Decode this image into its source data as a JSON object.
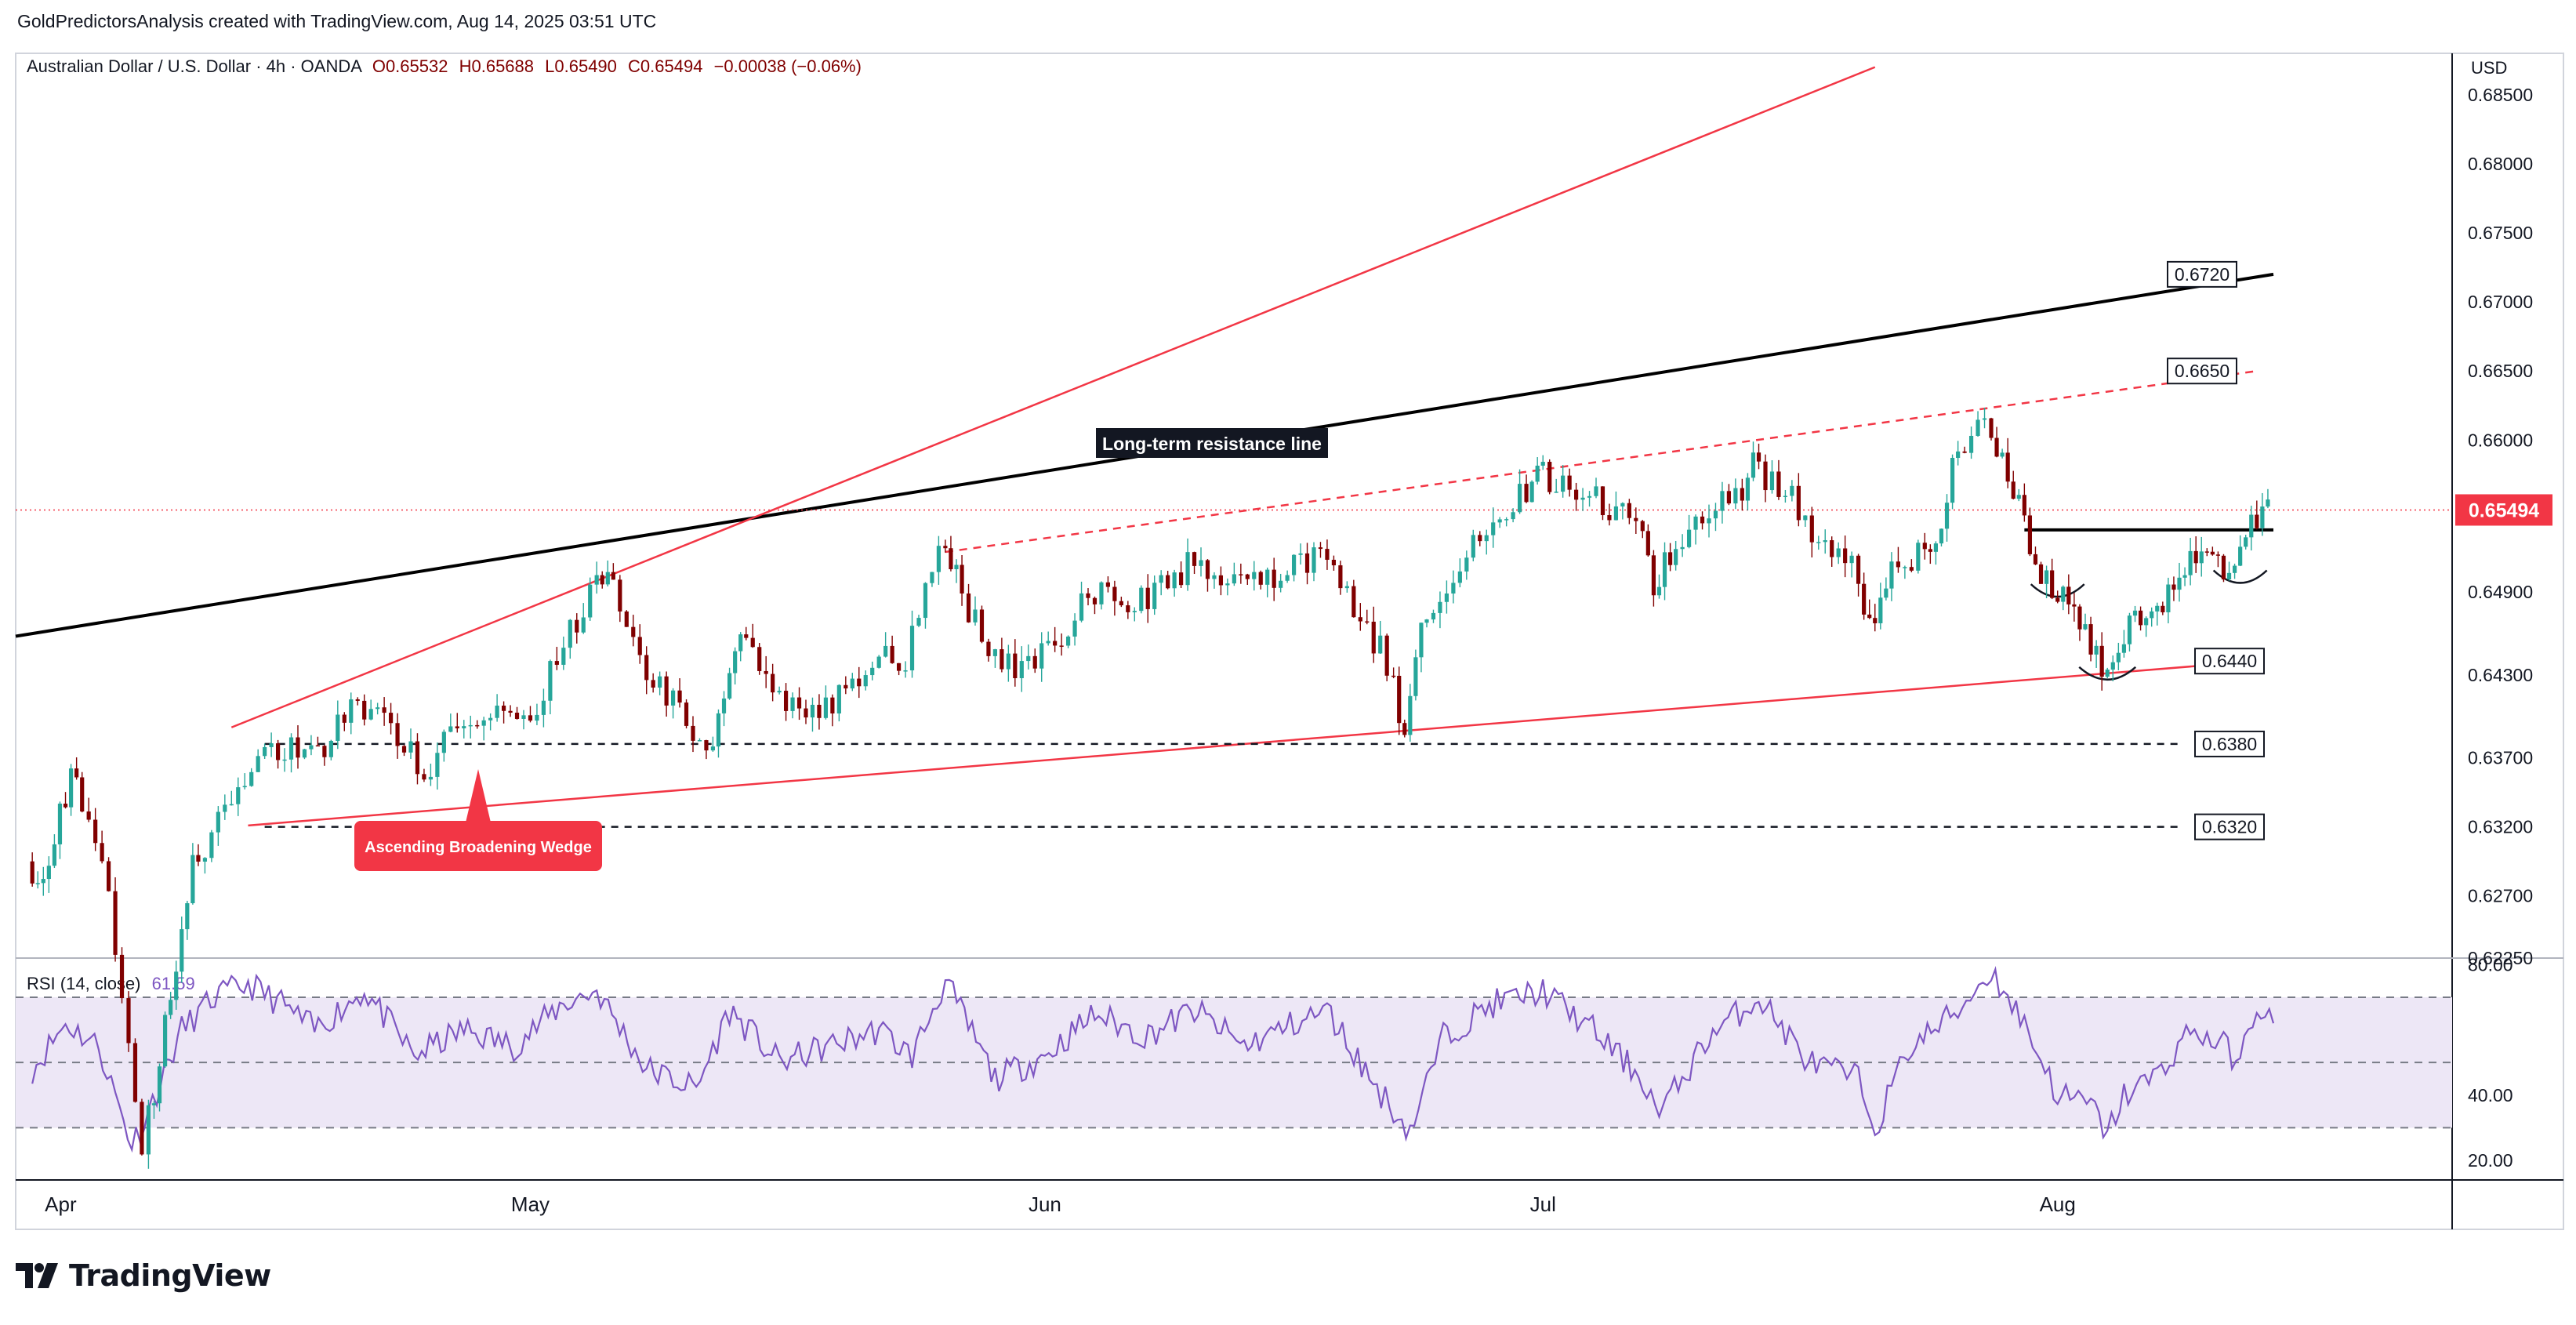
{
  "header": {
    "credit": "GoldPredictorsAnalysis created with TradingView.com, Aug 14, 2025 03:51 UTC"
  },
  "legend": {
    "symbol": "Australian Dollar / U.S. Dollar · 4h · OANDA",
    "open": "O0.65532",
    "high": "H0.65688",
    "low": "L0.65490",
    "close": "C0.65494",
    "change": "−0.00038 (−0.06%)"
  },
  "rsi_legend": {
    "label": "RSI (14, close)",
    "value": "61.59"
  },
  "price_axis": {
    "currency": "USD",
    "current_price": "0.65494"
  },
  "brand": {
    "name": "TradingView"
  },
  "colors": {
    "up": "#26a69a",
    "down": "#800000",
    "trend_red": "#f23645",
    "trend_black": "#000000",
    "rsi_line": "#7e57c2",
    "rsi_band": "#ede7f6",
    "price_tag": "#f23645"
  },
  "chart_data": [
    {
      "type": "candlestick",
      "title": "Australian Dollar / U.S. Dollar · 4h · OANDA",
      "ylabel": "USD",
      "ylim": [
        0.6225,
        0.688
      ],
      "y_ticks": [
        "0.68500",
        "0.68000",
        "0.67500",
        "0.67000",
        "0.66500",
        "0.66000",
        "0.65494",
        "0.64900",
        "0.64300",
        "0.63700",
        "0.63200",
        "0.62700",
        "0.62250"
      ],
      "x_ticks": [
        "Apr",
        "May",
        "Jun",
        "Jul",
        "Aug"
      ],
      "close_path": [
        {
          "date": "2025-04-01",
          "close": 0.6295
        },
        {
          "date": "2025-04-02",
          "close": 0.628
        },
        {
          "date": "2025-04-03",
          "close": 0.6335
        },
        {
          "date": "2025-04-04",
          "close": 0.636
        },
        {
          "date": "2025-04-06",
          "close": 0.627
        },
        {
          "date": "2025-04-08",
          "close": 0.609
        },
        {
          "date": "2025-04-09",
          "close": 0.615
        },
        {
          "date": "2025-04-10",
          "close": 0.6225
        },
        {
          "date": "2025-04-11",
          "close": 0.629
        },
        {
          "date": "2025-04-13",
          "close": 0.633
        },
        {
          "date": "2025-04-15",
          "close": 0.637
        },
        {
          "date": "2025-04-17",
          "close": 0.6375
        },
        {
          "date": "2025-04-19",
          "close": 0.638
        },
        {
          "date": "2025-04-21",
          "close": 0.641
        },
        {
          "date": "2025-04-23",
          "close": 0.639
        },
        {
          "date": "2025-04-25",
          "close": 0.636
        },
        {
          "date": "2025-04-27",
          "close": 0.6395
        },
        {
          "date": "2025-04-29",
          "close": 0.6405
        },
        {
          "date": "2025-05-01",
          "close": 0.639
        },
        {
          "date": "2025-05-03",
          "close": 0.644
        },
        {
          "date": "2025-05-05",
          "close": 0.649
        },
        {
          "date": "2025-05-06",
          "close": 0.65
        },
        {
          "date": "2025-05-08",
          "close": 0.644
        },
        {
          "date": "2025-05-10",
          "close": 0.641
        },
        {
          "date": "2025-05-12",
          "close": 0.637
        },
        {
          "date": "2025-05-13",
          "close": 0.642
        },
        {
          "date": "2025-05-14",
          "close": 0.647
        },
        {
          "date": "2025-05-16",
          "close": 0.642
        },
        {
          "date": "2025-05-18",
          "close": 0.64
        },
        {
          "date": "2025-05-20",
          "close": 0.6415
        },
        {
          "date": "2025-05-22",
          "close": 0.644
        },
        {
          "date": "2025-05-24",
          "close": 0.644
        },
        {
          "date": "2025-05-26",
          "close": 0.652
        },
        {
          "date": "2025-05-27",
          "close": 0.65
        },
        {
          "date": "2025-05-29",
          "close": 0.6445
        },
        {
          "date": "2025-05-31",
          "close": 0.643
        },
        {
          "date": "2025-06-02",
          "close": 0.645
        },
        {
          "date": "2025-06-04",
          "close": 0.649
        },
        {
          "date": "2025-06-06",
          "close": 0.648
        },
        {
          "date": "2025-06-08",
          "close": 0.649
        },
        {
          "date": "2025-06-10",
          "close": 0.651
        },
        {
          "date": "2025-06-12",
          "close": 0.6505
        },
        {
          "date": "2025-06-14",
          "close": 0.65
        },
        {
          "date": "2025-06-16",
          "close": 0.6505
        },
        {
          "date": "2025-06-18",
          "close": 0.652
        },
        {
          "date": "2025-06-20",
          "close": 0.648
        },
        {
          "date": "2025-06-22",
          "close": 0.644
        },
        {
          "date": "2025-06-23",
          "close": 0.6385
        },
        {
          "date": "2025-06-24",
          "close": 0.647
        },
        {
          "date": "2025-06-26",
          "close": 0.65
        },
        {
          "date": "2025-06-28",
          "close": 0.654
        },
        {
          "date": "2025-06-30",
          "close": 0.656
        },
        {
          "date": "2025-07-01",
          "close": 0.6575
        },
        {
          "date": "2025-07-03",
          "close": 0.657
        },
        {
          "date": "2025-07-05",
          "close": 0.6555
        },
        {
          "date": "2025-07-07",
          "close": 0.654
        },
        {
          "date": "2025-07-08",
          "close": 0.6495
        },
        {
          "date": "2025-07-09",
          "close": 0.652
        },
        {
          "date": "2025-07-11",
          "close": 0.6545
        },
        {
          "date": "2025-07-13",
          "close": 0.656
        },
        {
          "date": "2025-07-14",
          "close": 0.658
        },
        {
          "date": "2025-07-16",
          "close": 0.6565
        },
        {
          "date": "2025-07-18",
          "close": 0.652
        },
        {
          "date": "2025-07-20",
          "close": 0.651
        },
        {
          "date": "2025-07-21",
          "close": 0.6465
        },
        {
          "date": "2025-07-22",
          "close": 0.65
        },
        {
          "date": "2025-07-24",
          "close": 0.652
        },
        {
          "date": "2025-07-25",
          "close": 0.653
        },
        {
          "date": "2025-07-26",
          "close": 0.658
        },
        {
          "date": "2025-07-28",
          "close": 0.6615
        },
        {
          "date": "2025-07-29",
          "close": 0.659
        },
        {
          "date": "2025-07-30",
          "close": 0.6555
        },
        {
          "date": "2025-07-31",
          "close": 0.65
        },
        {
          "date": "2025-08-01",
          "close": 0.6495
        },
        {
          "date": "2025-08-02",
          "close": 0.649
        },
        {
          "date": "2025-08-03",
          "close": 0.646
        },
        {
          "date": "2025-08-04",
          "close": 0.643
        },
        {
          "date": "2025-08-05",
          "close": 0.6445
        },
        {
          "date": "2025-08-06",
          "close": 0.648
        },
        {
          "date": "2025-08-07",
          "close": 0.647
        },
        {
          "date": "2025-08-08",
          "close": 0.649
        },
        {
          "date": "2025-08-09",
          "close": 0.6505
        },
        {
          "date": "2025-08-10",
          "close": 0.6525
        },
        {
          "date": "2025-08-11",
          "close": 0.651
        },
        {
          "date": "2025-08-12",
          "close": 0.651
        },
        {
          "date": "2025-08-13",
          "close": 0.654
        },
        {
          "date": "2025-08-14",
          "close": 0.6549
        }
      ],
      "levels": [
        {
          "label": "0.6720",
          "value": 0.672
        },
        {
          "label": "0.6650",
          "value": 0.665
        },
        {
          "label": "0.6440",
          "value": 0.644
        },
        {
          "label": "0.6380",
          "value": 0.638
        },
        {
          "label": "0.6320",
          "value": 0.632
        }
      ],
      "annotations": [
        {
          "text": "Long-term resistance line"
        },
        {
          "text": "Ascending Broadening Wedge"
        }
      ],
      "trendlines": [
        {
          "name": "long-term-resistance",
          "from": [
            "2025-03-31",
            0.6458
          ],
          "to": [
            "2025-08-14",
            0.672
          ]
        },
        {
          "name": "wedge-upper",
          "from": [
            "2025-04-13",
            0.6392
          ],
          "to": [
            "2025-07-21",
            0.687
          ]
        },
        {
          "name": "wedge-lower",
          "from": [
            "2025-04-14",
            0.6321
          ],
          "to": [
            "2025-08-13",
            0.644
          ]
        },
        {
          "name": "wedge-upper-dashed",
          "from": [
            "2025-05-26",
            0.6519
          ],
          "to": [
            "2025-08-13",
            0.665
          ]
        },
        {
          "name": "neckline",
          "from": [
            "2025-07-30",
            0.6535
          ],
          "to": [
            "2025-08-14",
            0.6535
          ]
        }
      ]
    },
    {
      "type": "line",
      "title": "RSI (14, close)",
      "ylim": [
        14,
        82
      ],
      "y_ticks": [
        "80.00",
        "40.00",
        "20.00"
      ],
      "bands": [
        70,
        50,
        30
      ],
      "series": [
        {
          "values": [
            {
              "date": "2025-04-01",
              "rsi": 48
            },
            {
              "date": "2025-04-03",
              "rsi": 62
            },
            {
              "date": "2025-04-05",
              "rsi": 55
            },
            {
              "date": "2025-04-07",
              "rsi": 25
            },
            {
              "date": "2025-04-08",
              "rsi": 35
            },
            {
              "date": "2025-04-10",
              "rsi": 60
            },
            {
              "date": "2025-04-12",
              "rsi": 70
            },
            {
              "date": "2025-04-14",
              "rsi": 74
            },
            {
              "date": "2025-04-16",
              "rsi": 68
            },
            {
              "date": "2025-04-18",
              "rsi": 60
            },
            {
              "date": "2025-04-21",
              "rsi": 72
            },
            {
              "date": "2025-04-24",
              "rsi": 52
            },
            {
              "date": "2025-04-27",
              "rsi": 60
            },
            {
              "date": "2025-04-30",
              "rsi": 55
            },
            {
              "date": "2025-05-03",
              "rsi": 68
            },
            {
              "date": "2025-05-05",
              "rsi": 72
            },
            {
              "date": "2025-05-08",
              "rsi": 48
            },
            {
              "date": "2025-05-11",
              "rsi": 42
            },
            {
              "date": "2025-05-13",
              "rsi": 66
            },
            {
              "date": "2025-05-16",
              "rsi": 50
            },
            {
              "date": "2025-05-19",
              "rsi": 55
            },
            {
              "date": "2025-05-22",
              "rsi": 60
            },
            {
              "date": "2025-05-24",
              "rsi": 52
            },
            {
              "date": "2025-05-26",
              "rsi": 75
            },
            {
              "date": "2025-05-29",
              "rsi": 45
            },
            {
              "date": "2025-06-01",
              "rsi": 52
            },
            {
              "date": "2025-06-04",
              "rsi": 65
            },
            {
              "date": "2025-06-07",
              "rsi": 58
            },
            {
              "date": "2025-06-10",
              "rsi": 66
            },
            {
              "date": "2025-06-13",
              "rsi": 55
            },
            {
              "date": "2025-06-16",
              "rsi": 62
            },
            {
              "date": "2025-06-18",
              "rsi": 66
            },
            {
              "date": "2025-06-21",
              "rsi": 42
            },
            {
              "date": "2025-06-23",
              "rsi": 29
            },
            {
              "date": "2025-06-25",
              "rsi": 58
            },
            {
              "date": "2025-06-28",
              "rsi": 68
            },
            {
              "date": "2025-07-01",
              "rsi": 72
            },
            {
              "date": "2025-07-04",
              "rsi": 60
            },
            {
              "date": "2025-07-07",
              "rsi": 45
            },
            {
              "date": "2025-07-08",
              "rsi": 34
            },
            {
              "date": "2025-07-11",
              "rsi": 58
            },
            {
              "date": "2025-07-14",
              "rsi": 70
            },
            {
              "date": "2025-07-17",
              "rsi": 50
            },
            {
              "date": "2025-07-20",
              "rsi": 45
            },
            {
              "date": "2025-07-21",
              "rsi": 30
            },
            {
              "date": "2025-07-23",
              "rsi": 54
            },
            {
              "date": "2025-07-26",
              "rsi": 66
            },
            {
              "date": "2025-07-28",
              "rsi": 78
            },
            {
              "date": "2025-07-30",
              "rsi": 62
            },
            {
              "date": "2025-08-01",
              "rsi": 40
            },
            {
              "date": "2025-08-03",
              "rsi": 37
            },
            {
              "date": "2025-08-04",
              "rsi": 28
            },
            {
              "date": "2025-08-05",
              "rsi": 40
            },
            {
              "date": "2025-08-07",
              "rsi": 46
            },
            {
              "date": "2025-08-09",
              "rsi": 60
            },
            {
              "date": "2025-08-11",
              "rsi": 55
            },
            {
              "date": "2025-08-12",
              "rsi": 50
            },
            {
              "date": "2025-08-13",
              "rsi": 68
            },
            {
              "date": "2025-08-14",
              "rsi": 62
            }
          ]
        }
      ]
    }
  ]
}
